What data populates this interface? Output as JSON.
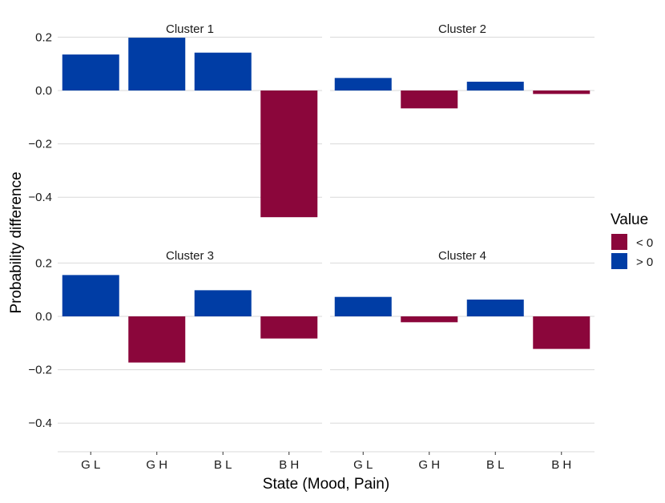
{
  "chart_data": {
    "type": "bar",
    "xlabel": "State (Mood, Pain)",
    "ylabel": "Probability difference",
    "categories": [
      "G L",
      "G H",
      "B L",
      "B H"
    ],
    "ylim": [
      -0.5,
      0.2
    ],
    "yticks": [
      0.2,
      0.0,
      -0.2,
      -0.4
    ],
    "ytick_labels": [
      "0.2",
      "0.0",
      "−0.2",
      "−0.4"
    ],
    "grid": true,
    "panels": [
      {
        "title": "Cluster 1",
        "values": [
          0.135,
          0.198,
          0.142,
          -0.475
        ]
      },
      {
        "title": "Cluster 2",
        "values": [
          0.047,
          -0.067,
          0.033,
          -0.013
        ]
      },
      {
        "title": "Cluster 3",
        "values": [
          0.155,
          -0.173,
          0.098,
          -0.083
        ]
      },
      {
        "title": "Cluster 4",
        "values": [
          0.073,
          -0.022,
          0.063,
          -0.122
        ]
      }
    ],
    "legend": {
      "title": "Value",
      "position": "right",
      "items": [
        {
          "label": "< 0",
          "color": "#8B063B"
        },
        {
          "label": "> 0",
          "color": "#003DA5"
        }
      ]
    },
    "colors": {
      "negative": "#8B063B",
      "positive": "#003DA5",
      "grid": "#D9D9D9"
    }
  }
}
